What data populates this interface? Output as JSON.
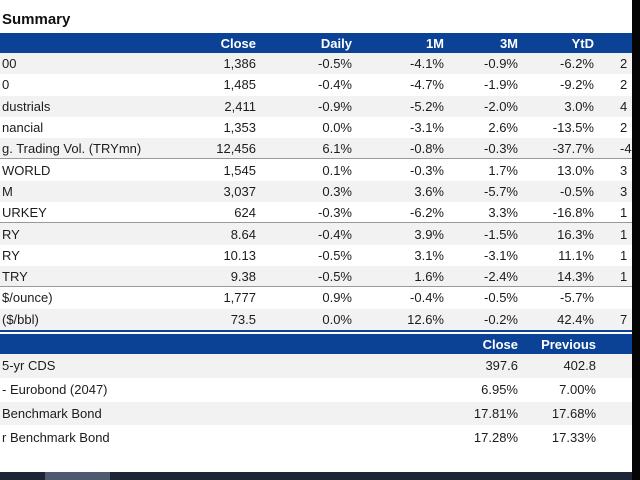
{
  "page": {
    "title": "Summary"
  },
  "colors": {
    "accent": "#0b4296",
    "stripe": "#f2f2f2",
    "separator": "#999999",
    "scrollbar_track": "#1d2536",
    "scrollbar_thumb": "#4e5a70",
    "letterbox": "#050505"
  },
  "table1": {
    "headers": {
      "label": "",
      "close": "Close",
      "daily": "Daily",
      "m1": "1M",
      "m3": "3M",
      "ytd": "YtD",
      "extra": ""
    },
    "rows": [
      {
        "label": "00",
        "close": "1,386",
        "daily": "-0.5%",
        "m1": "-4.1%",
        "m3": "-0.9%",
        "ytd": "-6.2%",
        "partial": "2"
      },
      {
        "label": "0",
        "close": "1,485",
        "daily": "-0.4%",
        "m1": "-4.7%",
        "m3": "-1.9%",
        "ytd": "-9.2%",
        "partial": "2"
      },
      {
        "label": "dustrials",
        "close": "2,411",
        "daily": "-0.9%",
        "m1": "-5.2%",
        "m3": "-2.0%",
        "ytd": "3.0%",
        "partial": "4"
      },
      {
        "label": "nancial",
        "close": "1,353",
        "daily": "0.0%",
        "m1": "-3.1%",
        "m3": "2.6%",
        "ytd": "-13.5%",
        "partial": "2"
      },
      {
        "label": "g. Trading Vol. (TRYmn)",
        "close": "12,456",
        "daily": "6.1%",
        "m1": "-0.8%",
        "m3": "-0.3%",
        "ytd": "-37.7%",
        "partial": "-4"
      },
      {
        "label": "WORLD",
        "close": "1,545",
        "daily": "0.1%",
        "m1": "-0.3%",
        "m3": "1.7%",
        "ytd": "13.0%",
        "partial": "3"
      },
      {
        "label": "M",
        "close": "3,037",
        "daily": "0.3%",
        "m1": "3.6%",
        "m3": "-5.7%",
        "ytd": "-0.5%",
        "partial": "3"
      },
      {
        "label": "URKEY",
        "close": "624",
        "daily": "-0.3%",
        "m1": "-6.2%",
        "m3": "3.3%",
        "ytd": "-16.8%",
        "partial": "1"
      },
      {
        "label": "RY",
        "close": "8.64",
        "daily": "-0.4%",
        "m1": "3.9%",
        "m3": "-1.5%",
        "ytd": "16.3%",
        "partial": "1"
      },
      {
        "label": "RY",
        "close": "10.13",
        "daily": "-0.5%",
        "m1": "3.1%",
        "m3": "-3.1%",
        "ytd": "11.1%",
        "partial": "1"
      },
      {
        "label": "TRY",
        "close": "9.38",
        "daily": "-0.5%",
        "m1": "1.6%",
        "m3": "-2.4%",
        "ytd": "14.3%",
        "partial": "1"
      },
      {
        "label": "$/ounce)",
        "close": "1,777",
        "daily": "0.9%",
        "m1": "-0.4%",
        "m3": "-0.5%",
        "ytd": "-5.7%",
        "partial": ""
      },
      {
        "label": "($/bbl)",
        "close": "73.5",
        "daily": "0.0%",
        "m1": "12.6%",
        "m3": "-0.2%",
        "ytd": "42.4%",
        "partial": "7"
      }
    ]
  },
  "table2": {
    "headers": {
      "label": "",
      "close": "Close",
      "previous": "Previous"
    },
    "rows": [
      {
        "label": "5-yr CDS",
        "close": "397.6",
        "previous": "402.8"
      },
      {
        "label": "- Eurobond (2047)",
        "close": "6.95%",
        "previous": "7.00%"
      },
      {
        "label": "Benchmark Bond",
        "close": "17.81%",
        "previous": "17.68%"
      },
      {
        "label": "r Benchmark Bond",
        "close": "17.28%",
        "previous": "17.33%"
      }
    ]
  }
}
